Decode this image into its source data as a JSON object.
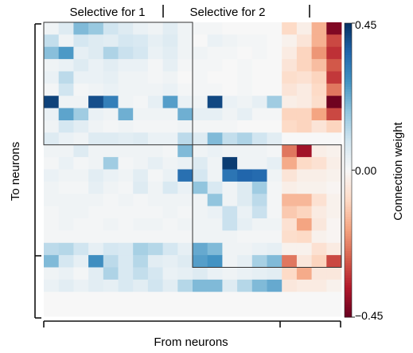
{
  "chart_data": {
    "type": "heatmap",
    "xlabel": "From neurons",
    "ylabel": "To neurons",
    "group_labels": [
      "Selective for 1",
      "Selective for 2"
    ],
    "colorbar": {
      "label": "Connection weight",
      "ticks": [
        "0.45",
        "0.00",
        "−0.45"
      ],
      "min": -0.45,
      "max": 0.45,
      "colormap": "RdBu (red negative, white zero, blue positive)"
    },
    "rows": 24,
    "cols": 20,
    "values": [
      [
        0.02,
        0.06,
        0.2,
        0.17,
        0.09,
        0.06,
        0.03,
        0.02,
        0.05,
        0.02,
        0.01,
        0.01,
        0.0,
        0.0,
        0.0,
        0.0,
        -0.09,
        -0.03,
        -0.16,
        -0.42
      ],
      [
        0.11,
        0.02,
        0.08,
        0.06,
        0.05,
        0.08,
        0.07,
        0.04,
        0.06,
        0.02,
        0.0,
        0.03,
        0.02,
        0.01,
        0.01,
        0.0,
        -0.02,
        -0.06,
        -0.16,
        -0.3
      ],
      [
        0.19,
        0.26,
        0.04,
        0.06,
        0.14,
        0.1,
        0.08,
        0.03,
        0.05,
        0.02,
        0.02,
        0.01,
        0.01,
        0.0,
        0.01,
        0.0,
        -0.04,
        -0.1,
        -0.2,
        -0.33
      ],
      [
        0.02,
        0.03,
        0.06,
        0.03,
        0.05,
        0.03,
        0.03,
        0.01,
        0.04,
        0.01,
        0.01,
        0.01,
        0.0,
        0.01,
        0.0,
        0.0,
        -0.06,
        -0.1,
        -0.14,
        -0.28
      ],
      [
        0.03,
        0.12,
        0.03,
        0.03,
        0.04,
        0.02,
        0.02,
        0.01,
        0.02,
        0.0,
        0.01,
        0.0,
        0.0,
        0.01,
        0.0,
        0.0,
        -0.08,
        -0.07,
        -0.1,
        -0.32
      ],
      [
        0.01,
        0.09,
        0.01,
        0.02,
        0.03,
        0.02,
        0.02,
        0.02,
        0.03,
        0.01,
        0.01,
        0.01,
        0.0,
        0.01,
        0.0,
        0.0,
        -0.06,
        -0.04,
        -0.09,
        -0.24
      ],
      [
        0.42,
        0.02,
        0.02,
        0.4,
        0.31,
        0.02,
        0.01,
        0.04,
        0.25,
        0.03,
        0.02,
        0.41,
        0.03,
        0.02,
        0.04,
        0.16,
        -0.03,
        -0.04,
        -0.08,
        -0.44
      ],
      [
        0.03,
        0.24,
        0.16,
        0.03,
        0.02,
        0.22,
        0.02,
        0.02,
        0.02,
        0.22,
        0.04,
        0.04,
        0.02,
        0.04,
        0.01,
        0.01,
        -0.1,
        -0.1,
        -0.18,
        -0.3
      ],
      [
        0.02,
        0.08,
        0.05,
        0.02,
        0.01,
        0.02,
        0.01,
        0.01,
        0.01,
        0.02,
        0.01,
        0.01,
        0.01,
        0.0,
        0.0,
        0.0,
        -0.09,
        -0.1,
        -0.06,
        -0.1
      ],
      [
        0.06,
        0.03,
        0.02,
        0.06,
        0.06,
        0.05,
        0.06,
        0.03,
        0.03,
        0.12,
        0.06,
        0.2,
        0.11,
        0.14,
        0.09,
        0.05,
        -0.0,
        -0.0,
        -0.0,
        -0.0
      ],
      [
        0.02,
        0.02,
        0.06,
        0.02,
        0.02,
        0.02,
        0.02,
        0.02,
        0.01,
        0.2,
        0.02,
        0.03,
        0.02,
        0.02,
        0.02,
        0.01,
        -0.24,
        -0.38,
        -0.03,
        -0.02
      ],
      [
        0.01,
        0.03,
        0.01,
        0.02,
        0.16,
        0.01,
        0.02,
        0.04,
        0.02,
        0.03,
        0.06,
        0.02,
        0.43,
        0.02,
        0.02,
        0.04,
        -0.17,
        -0.09,
        -0.07,
        -0.03
      ],
      [
        0.03,
        0.02,
        0.02,
        0.05,
        0.03,
        0.02,
        0.05,
        0.01,
        0.03,
        0.34,
        0.08,
        0.02,
        0.33,
        0.36,
        0.35,
        0.02,
        -0.06,
        -0.03,
        -0.03,
        -0.02
      ],
      [
        0.02,
        0.01,
        0.01,
        0.04,
        0.02,
        0.01,
        0.06,
        0.02,
        0.07,
        0.03,
        0.18,
        0.07,
        0.02,
        0.06,
        0.16,
        0.01,
        -0.03,
        -0.02,
        -0.02,
        -0.01
      ],
      [
        0.02,
        0.02,
        0.02,
        0.02,
        0.01,
        0.02,
        0.01,
        0.02,
        0.02,
        0.02,
        0.02,
        0.18,
        0.02,
        0.06,
        0.12,
        0.01,
        -0.15,
        -0.15,
        -0.07,
        -0.02
      ],
      [
        0.01,
        0.02,
        0.02,
        0.01,
        0.01,
        0.01,
        0.01,
        0.01,
        0.02,
        0.01,
        0.02,
        0.03,
        0.1,
        0.03,
        0.1,
        0.01,
        -0.12,
        -0.1,
        -0.04,
        -0.02
      ],
      [
        0.01,
        0.02,
        0.01,
        0.01,
        0.02,
        0.01,
        0.02,
        0.02,
        0.01,
        0.02,
        0.02,
        0.02,
        0.1,
        0.04,
        0.02,
        0.02,
        -0.07,
        -0.18,
        -0.05,
        -0.01
      ],
      [
        0.01,
        0.01,
        0.01,
        0.01,
        0.01,
        0.01,
        0.01,
        0.01,
        0.01,
        0.01,
        0.02,
        0.02,
        0.02,
        0.01,
        0.01,
        0.01,
        -0.08,
        -0.09,
        -0.02,
        -0.01
      ],
      [
        0.12,
        0.13,
        0.09,
        0.04,
        0.08,
        0.07,
        0.15,
        0.13,
        0.08,
        0.04,
        0.23,
        0.2,
        0.02,
        0.02,
        0.03,
        0.04,
        -0.02,
        -0.02,
        -0.07,
        -0.04
      ],
      [
        0.2,
        0.08,
        0.04,
        0.28,
        0.12,
        0.07,
        0.13,
        0.05,
        0.04,
        0.06,
        0.25,
        0.27,
        0.02,
        0.04,
        0.15,
        0.2,
        -0.24,
        -0.05,
        -0.1,
        -0.3
      ],
      [
        0.02,
        0.03,
        0.01,
        0.05,
        0.14,
        0.07,
        0.11,
        0.08,
        0.03,
        0.04,
        0.06,
        0.03,
        0.02,
        0.03,
        0.04,
        0.05,
        -0.09,
        -0.17,
        -0.05,
        -0.05
      ],
      [
        0.03,
        0.05,
        0.03,
        0.05,
        0.04,
        0.07,
        0.05,
        0.09,
        0.05,
        0.13,
        0.2,
        0.2,
        0.06,
        0.13,
        0.2,
        0.23,
        -0.05,
        -0.04,
        -0.04,
        -0.02
      ],
      [
        0.0,
        0.0,
        0.0,
        0.0,
        0.0,
        0.0,
        0.0,
        0.0,
        0.0,
        0.0,
        0.0,
        0.0,
        0.0,
        0.0,
        0.0,
        0.0,
        0.0,
        0.0,
        0.0,
        0.0
      ],
      [
        0.0,
        0.0,
        0.0,
        0.0,
        0.0,
        0.0,
        0.0,
        0.0,
        0.0,
        0.0,
        0.0,
        0.0,
        0.0,
        0.0,
        0.0,
        0.0,
        0.0,
        0.0,
        0.0,
        0.0
      ]
    ]
  }
}
